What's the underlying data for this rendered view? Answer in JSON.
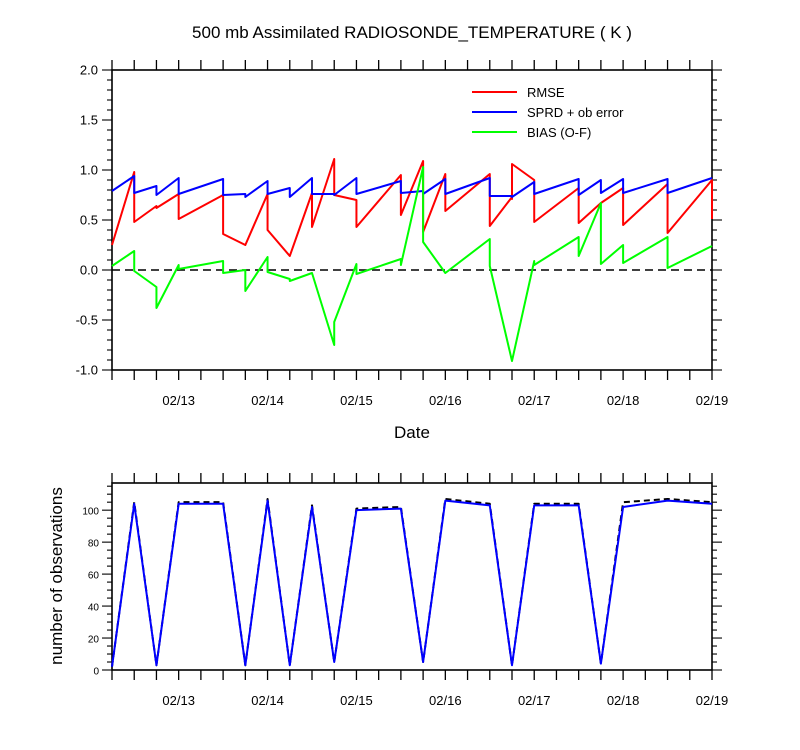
{
  "chart_data": [
    {
      "type": "line",
      "title": "500 mb Assimilated RADIOSONDE_TEMPERATURE ( K )",
      "xlabel": "Date",
      "ylabel": "",
      "xlim": [
        0,
        6.75
      ],
      "ylim": [
        -1.0,
        2.0
      ],
      "x_tick_positions": [
        0.75,
        1.75,
        2.75,
        3.75,
        4.75,
        5.75,
        6.75
      ],
      "x_tick_labels": [
        "02/13",
        "02/14",
        "02/15",
        "02/16",
        "02/17",
        "02/18",
        "02/19"
      ],
      "y_ticks": [
        -1.0,
        -0.5,
        0.0,
        0.5,
        1.0,
        1.5,
        2.0
      ],
      "y_tick_labels": [
        "-1.0",
        "-0.5",
        "0.0",
        "0.5",
        "1.0",
        "1.5",
        "2.0"
      ],
      "zero_line": "dashed",
      "legend_position": "top-right",
      "series": [
        {
          "name": "RMSE",
          "color": "#ff0000",
          "points": [
            [
              0,
              0.25
            ],
            [
              0.25,
              0.98
            ],
            [
              0.25,
              0.48
            ],
            [
              0.5,
              0.64
            ],
            [
              0.5,
              0.62
            ],
            [
              0.75,
              0.76
            ],
            [
              0.75,
              0.51
            ],
            [
              1.25,
              0.75
            ],
            [
              1.25,
              0.36
            ],
            [
              1.5,
              0.25
            ],
            [
              1.75,
              0.76
            ],
            [
              1.75,
              0.4
            ],
            [
              2.0,
              0.14
            ],
            [
              2.25,
              0.77
            ],
            [
              2.25,
              0.43
            ],
            [
              2.5,
              1.11
            ],
            [
              2.5,
              0.75
            ],
            [
              2.75,
              0.7
            ],
            [
              2.75,
              0.43
            ],
            [
              3.25,
              0.95
            ],
            [
              3.25,
              0.55
            ],
            [
              3.5,
              1.09
            ],
            [
              3.5,
              0.38
            ],
            [
              3.75,
              0.96
            ],
            [
              3.75,
              0.59
            ],
            [
              4.25,
              0.96
            ],
            [
              4.25,
              0.44
            ],
            [
              4.5,
              0.73
            ],
            [
              4.5,
              0.71
            ],
            [
              4.5,
              1.06
            ],
            [
              4.75,
              0.9
            ],
            [
              4.75,
              0.48
            ],
            [
              5.25,
              0.82
            ],
            [
              5.25,
              0.47
            ],
            [
              5.5,
              0.67
            ],
            [
              5.75,
              0.82
            ],
            [
              5.75,
              0.45
            ],
            [
              6.25,
              0.86
            ],
            [
              6.25,
              0.37
            ],
            [
              6.75,
              0.9
            ],
            [
              6.75,
              0.51
            ]
          ]
        },
        {
          "name": "SPRD + ob error",
          "color": "#0000ff",
          "points": [
            [
              0,
              0.79
            ],
            [
              0.25,
              0.94
            ],
            [
              0.25,
              0.77
            ],
            [
              0.5,
              0.84
            ],
            [
              0.5,
              0.75
            ],
            [
              0.75,
              0.92
            ],
            [
              0.75,
              0.76
            ],
            [
              1.25,
              0.91
            ],
            [
              1.25,
              0.75
            ],
            [
              1.5,
              0.76
            ],
            [
              1.5,
              0.73
            ],
            [
              1.75,
              0.89
            ],
            [
              1.75,
              0.76
            ],
            [
              2.0,
              0.82
            ],
            [
              2.0,
              0.73
            ],
            [
              2.25,
              0.92
            ],
            [
              2.25,
              0.76
            ],
            [
              2.5,
              0.76
            ],
            [
              2.5,
              0.75
            ],
            [
              2.75,
              0.92
            ],
            [
              2.75,
              0.76
            ],
            [
              3.25,
              0.89
            ],
            [
              3.25,
              0.77
            ],
            [
              3.5,
              0.79
            ],
            [
              3.5,
              0.76
            ],
            [
              3.75,
              0.91
            ],
            [
              3.75,
              0.76
            ],
            [
              4.25,
              0.92
            ],
            [
              4.25,
              0.74
            ],
            [
              4.5,
              0.74
            ],
            [
              4.5,
              0.73
            ],
            [
              4.75,
              0.88
            ],
            [
              4.75,
              0.76
            ],
            [
              5.25,
              0.91
            ],
            [
              5.25,
              0.75
            ],
            [
              5.5,
              0.9
            ],
            [
              5.5,
              0.77
            ],
            [
              5.75,
              0.91
            ],
            [
              5.75,
              0.77
            ],
            [
              6.25,
              0.91
            ],
            [
              6.25,
              0.77
            ],
            [
              6.75,
              0.92
            ]
          ]
        },
        {
          "name": "BIAS (O-F)",
          "color": "#00ff00",
          "points": [
            [
              0,
              0.04
            ],
            [
              0.25,
              0.19
            ],
            [
              0.25,
              -0.01
            ],
            [
              0.5,
              -0.17
            ],
            [
              0.5,
              -0.38
            ],
            [
              0.75,
              0.05
            ],
            [
              0.75,
              0.01
            ],
            [
              1.25,
              0.09
            ],
            [
              1.25,
              -0.03
            ],
            [
              1.5,
              0.0
            ],
            [
              1.5,
              -0.21
            ],
            [
              1.75,
              0.13
            ],
            [
              1.75,
              -0.02
            ],
            [
              2.0,
              -0.09
            ],
            [
              2.0,
              -0.11
            ],
            [
              2.25,
              -0.03
            ],
            [
              2.5,
              -0.75
            ],
            [
              2.5,
              -0.52
            ],
            [
              2.75,
              0.06
            ],
            [
              2.75,
              -0.04
            ],
            [
              3.25,
              0.11
            ],
            [
              3.25,
              0.05
            ],
            [
              3.5,
              1.03
            ],
            [
              3.5,
              0.28
            ],
            [
              3.75,
              -0.03
            ],
            [
              3.75,
              -0.03
            ],
            [
              4.25,
              0.31
            ],
            [
              4.25,
              0.04
            ],
            [
              4.5,
              -0.91
            ],
            [
              4.75,
              0.09
            ],
            [
              4.75,
              0.05
            ],
            [
              5.25,
              0.33
            ],
            [
              5.25,
              0.14
            ],
            [
              5.5,
              0.67
            ],
            [
              5.5,
              0.06
            ],
            [
              5.75,
              0.25
            ],
            [
              5.75,
              0.07
            ],
            [
              6.25,
              0.33
            ],
            [
              6.25,
              0.02
            ],
            [
              6.75,
              0.24
            ]
          ]
        }
      ]
    },
    {
      "type": "line",
      "title": "",
      "xlabel": "",
      "ylabel": "number of observations",
      "xlim": [
        0,
        6.75
      ],
      "ylim": [
        0,
        117
      ],
      "x_tick_positions": [
        0.75,
        1.75,
        2.75,
        3.75,
        4.75,
        5.75,
        6.75
      ],
      "x_tick_labels": [
        "02/13",
        "02/14",
        "02/15",
        "02/16",
        "02/17",
        "02/18",
        "02/19"
      ],
      "y_ticks": [
        0,
        20,
        40,
        60,
        80,
        100
      ],
      "y_tick_labels": [
        "0",
        "20",
        "40",
        "60",
        "80",
        "100"
      ],
      "series": [
        {
          "name": "",
          "color": "#000000",
          "dash": "dashed",
          "points": [
            [
              0,
              2
            ],
            [
              0.25,
              105
            ],
            [
              0.5,
              3
            ],
            [
              0.75,
              105
            ],
            [
              1.25,
              105
            ],
            [
              1.5,
              3
            ],
            [
              1.75,
              107
            ],
            [
              2.0,
              3
            ],
            [
              2.25,
              103
            ],
            [
              2.5,
              5
            ],
            [
              2.75,
              101
            ],
            [
              3.25,
              102
            ],
            [
              3.5,
              5
            ],
            [
              3.75,
              107
            ],
            [
              4.25,
              104
            ],
            [
              4.5,
              3
            ],
            [
              4.75,
              104
            ],
            [
              5.25,
              104
            ],
            [
              5.5,
              4
            ],
            [
              5.75,
              105
            ],
            [
              6.25,
              107
            ],
            [
              6.75,
              105
            ]
          ]
        },
        {
          "name": "",
          "color": "#0000ff",
          "dash": "solid",
          "points": [
            [
              0,
              2
            ],
            [
              0.25,
              104
            ],
            [
              0.5,
              3
            ],
            [
              0.75,
              104
            ],
            [
              1.25,
              104
            ],
            [
              1.5,
              3
            ],
            [
              1.75,
              106
            ],
            [
              2.0,
              3
            ],
            [
              2.25,
              102
            ],
            [
              2.5,
              5
            ],
            [
              2.75,
              100
            ],
            [
              3.25,
              101
            ],
            [
              3.5,
              5
            ],
            [
              3.75,
              106
            ],
            [
              4.25,
              103
            ],
            [
              4.5,
              3
            ],
            [
              4.75,
              103
            ],
            [
              5.25,
              103
            ],
            [
              5.5,
              4
            ],
            [
              5.75,
              102
            ],
            [
              6.25,
              106
            ],
            [
              6.75,
              104
            ]
          ]
        }
      ]
    }
  ]
}
